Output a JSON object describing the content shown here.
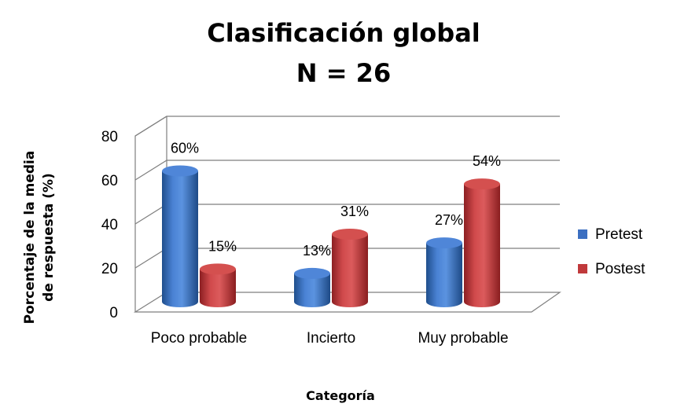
{
  "chart_data": {
    "type": "bar",
    "title": "Clasificación global",
    "subtitle": "N = 26",
    "xlabel": "Categoría",
    "ylabel": [
      "Porcentaje de la media",
      "de respuesta (%)"
    ],
    "categories": [
      "Poco probable",
      "Incierto",
      "Muy probable"
    ],
    "ylim": [
      0,
      80
    ],
    "yticks": [
      "0",
      "20",
      "40",
      "60",
      "80"
    ],
    "series": [
      {
        "name": "Pretest",
        "values": [
          60,
          13,
          27
        ],
        "labels": [
          "60%",
          "13%",
          "27%"
        ],
        "color": "#3c6fc1"
      },
      {
        "name": "Postest",
        "values": [
          15,
          31,
          54
        ],
        "labels": [
          "15%",
          "31%",
          "54%"
        ],
        "color": "#c0393b"
      }
    ],
    "legend": "right",
    "grid": true,
    "style": "3d-cylinder"
  }
}
